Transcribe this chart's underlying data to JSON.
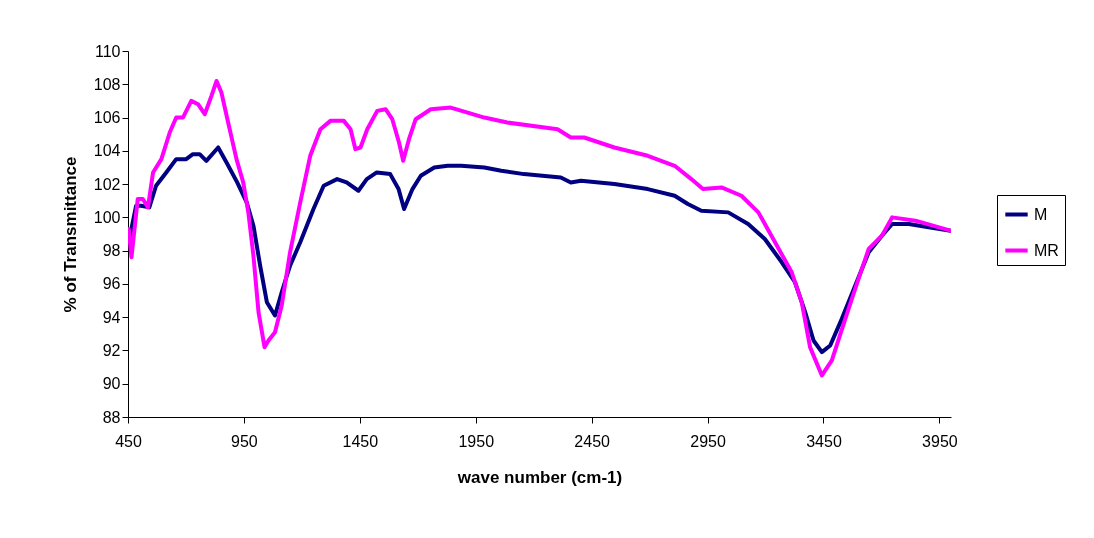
{
  "chart_data": {
    "type": "line",
    "xlabel": "wave number (cm-1)",
    "ylabel": "% of Transmittance",
    "xlim": [
      450,
      4000
    ],
    "xticks": [
      450,
      950,
      1450,
      1950,
      2450,
      2950,
      3450,
      3950
    ],
    "ylim": [
      88,
      110
    ],
    "yticks": [
      88,
      90,
      92,
      94,
      96,
      98,
      100,
      102,
      104,
      106,
      108,
      110
    ],
    "grid": false,
    "legend": "right",
    "line_style": "solid",
    "series": [
      {
        "name": "M",
        "color": "#000080",
        "x": [
          456,
          485,
          506,
          542,
          571,
          615,
          658,
          701,
          730,
          759,
          788,
          839,
          875,
          921,
          962,
          991,
          1020,
          1049,
          1084,
          1113,
          1149,
          1193,
          1250,
          1294,
          1352,
          1393,
          1444,
          1480,
          1523,
          1581,
          1617,
          1641,
          1677,
          1713,
          1771,
          1829,
          1887,
          1987,
          2060,
          2158,
          2317,
          2360,
          2404,
          2548,
          2692,
          2808,
          2865,
          2923,
          3039,
          3125,
          3197,
          3270,
          3327,
          3371,
          3407,
          3443,
          3479,
          3529,
          3587,
          3645,
          3702,
          3746,
          3818,
          3904,
          3998
        ],
        "values": [
          98.7,
          100.7,
          100.7,
          100.6,
          101.9,
          102.7,
          103.5,
          103.5,
          103.8,
          103.8,
          103.4,
          104.2,
          103.3,
          102.1,
          100.9,
          99.5,
          97.1,
          94.9,
          94.1,
          95.5,
          97.1,
          98.5,
          100.5,
          101.9,
          102.3,
          102.1,
          101.6,
          102.3,
          102.7,
          102.6,
          101.7,
          100.5,
          101.7,
          102.5,
          103.0,
          103.1,
          103.1,
          103.0,
          102.8,
          102.6,
          102.4,
          102.1,
          102.2,
          102.0,
          101.7,
          101.3,
          100.8,
          100.4,
          100.3,
          99.6,
          98.7,
          97.3,
          96.1,
          94.3,
          92.6,
          91.9,
          92.3,
          93.9,
          95.9,
          97.9,
          98.9,
          99.6,
          99.6,
          99.4,
          99.2
        ]
      },
      {
        "name": "MR",
        "color": "#ff00ff",
        "x": [
          453,
          465,
          492,
          514,
          536,
          558,
          594,
          630,
          658,
          687,
          723,
          752,
          781,
          810,
          832,
          853,
          882,
          918,
          947,
          969,
          991,
          1013,
          1039,
          1056,
          1084,
          1113,
          1149,
          1193,
          1236,
          1280,
          1323,
          1381,
          1410,
          1431,
          1453,
          1482,
          1525,
          1561,
          1590,
          1619,
          1637,
          1662,
          1691,
          1756,
          1842,
          1915,
          1987,
          2086,
          2303,
          2360,
          2418,
          2548,
          2692,
          2808,
          2880,
          2930,
          3010,
          3096,
          3169,
          3241,
          3313,
          3356,
          3392,
          3443,
          3486,
          3544,
          3601,
          3645,
          3702,
          3746,
          3847,
          3998
        ],
        "values": [
          99.3,
          97.6,
          101.1,
          101.1,
          100.6,
          102.7,
          103.5,
          105.1,
          106.0,
          106.0,
          107.0,
          106.8,
          106.2,
          107.3,
          108.2,
          107.5,
          105.7,
          103.5,
          102.1,
          100.3,
          97.7,
          94.3,
          92.2,
          92.6,
          93.1,
          94.7,
          97.9,
          100.9,
          103.7,
          105.3,
          105.8,
          105.8,
          105.3,
          104.1,
          104.2,
          105.3,
          106.4,
          106.5,
          105.9,
          104.5,
          103.4,
          104.7,
          105.9,
          106.5,
          106.6,
          106.3,
          106.0,
          105.7,
          105.3,
          104.8,
          104.8,
          104.2,
          103.7,
          103.1,
          102.3,
          101.7,
          101.8,
          101.3,
          100.3,
          98.5,
          96.7,
          94.9,
          92.2,
          90.5,
          91.4,
          93.9,
          96.3,
          98.1,
          98.9,
          100.0,
          99.8,
          99.2
        ]
      }
    ]
  }
}
